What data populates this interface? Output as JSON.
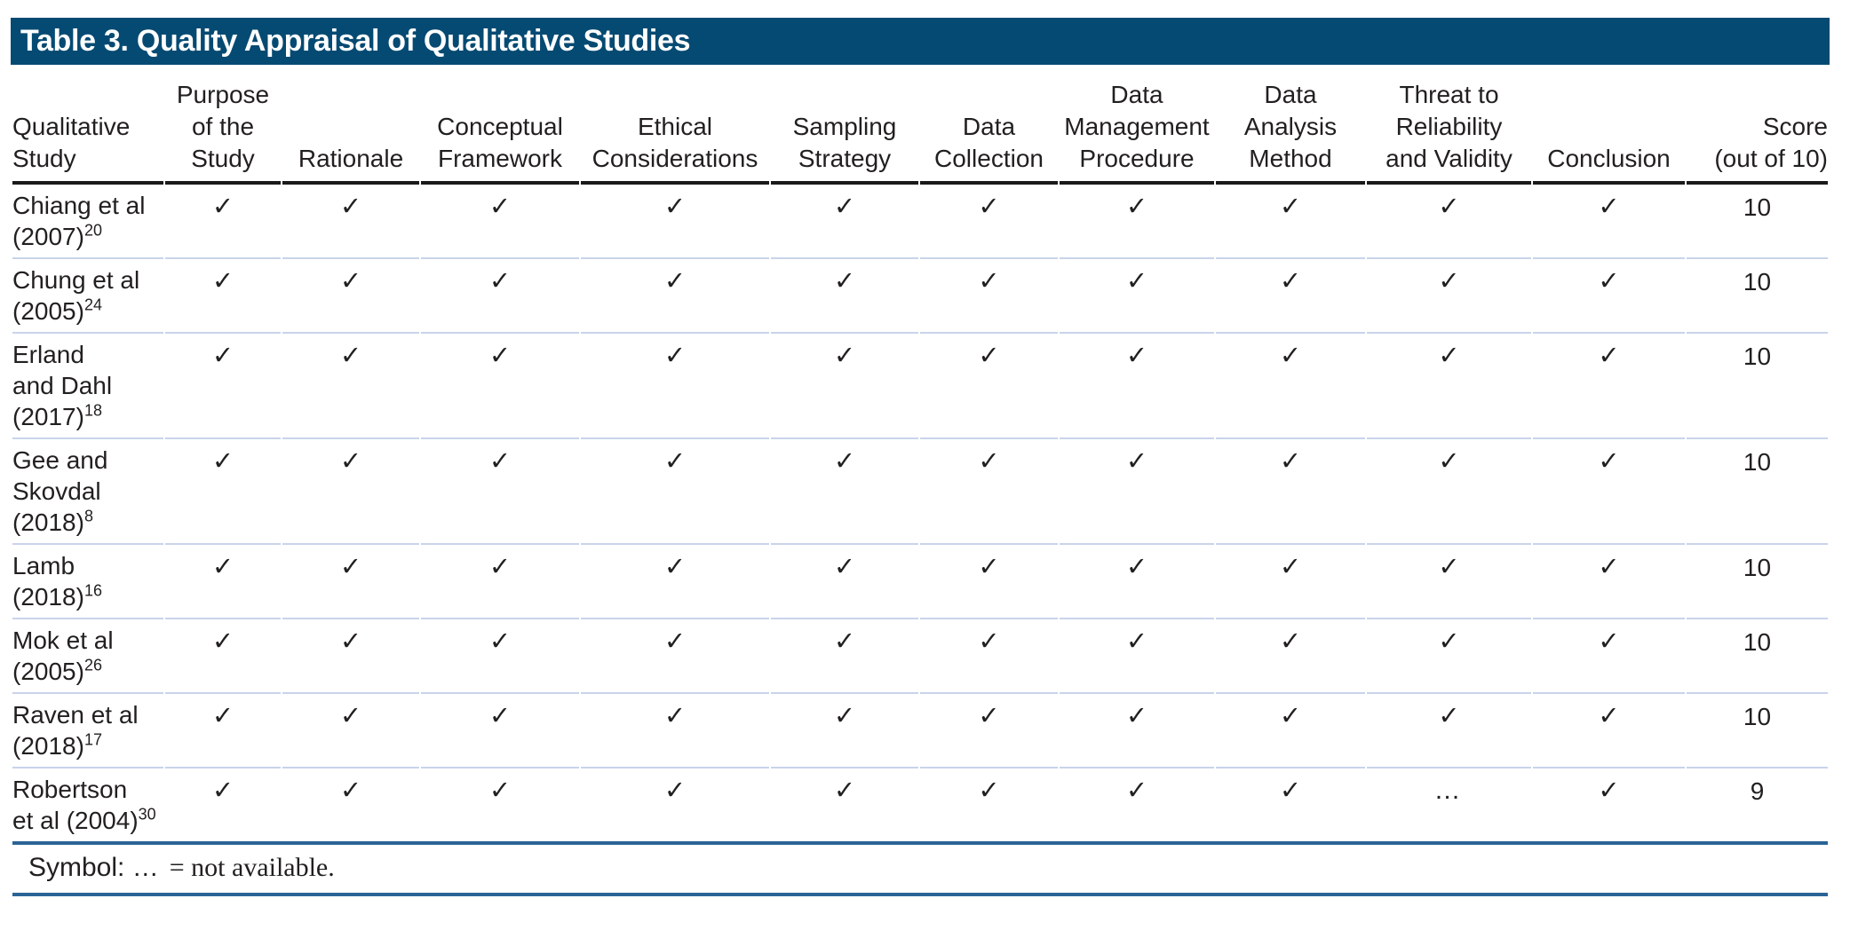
{
  "colors": {
    "title_bar_bg": "#054a72",
    "title_text": "#ffffff",
    "header_rule": "#1a1a1a",
    "row_divider": "#c9d3ea",
    "footnote_rule": "#2a6496",
    "body_text": "#221f1f"
  },
  "table": {
    "title": "Table 3. Quality Appraisal of Qualitative Studies",
    "columns": [
      "Qualitative\nStudy",
      "Purpose\nof the\nStudy",
      "Rationale",
      "Conceptual\nFramework",
      "Ethical\nConsiderations",
      "Sampling\nStrategy",
      "Data\nCollection",
      "Data\nManagement\nProcedure",
      "Data\nAnalysis\nMethod",
      "Threat to\nReliability\nand Validity",
      "Conclusion",
      "Score\n(out of 10)"
    ],
    "symbols": {
      "check": "✓",
      "not_available": "…"
    },
    "rows": [
      {
        "study": "Chiang et al\n(2007)",
        "ref": "20",
        "values": [
          "check",
          "check",
          "check",
          "check",
          "check",
          "check",
          "check",
          "check",
          "check",
          "check"
        ],
        "score": "10"
      },
      {
        "study": "Chung et al\n(2005)",
        "ref": "24",
        "values": [
          "check",
          "check",
          "check",
          "check",
          "check",
          "check",
          "check",
          "check",
          "check",
          "check"
        ],
        "score": "10"
      },
      {
        "study": "Erland\nand Dahl\n(2017)",
        "ref": "18",
        "values": [
          "check",
          "check",
          "check",
          "check",
          "check",
          "check",
          "check",
          "check",
          "check",
          "check"
        ],
        "score": "10"
      },
      {
        "study": "Gee and\nSkovdal\n(2018)",
        "ref": "8",
        "values": [
          "check",
          "check",
          "check",
          "check",
          "check",
          "check",
          "check",
          "check",
          "check",
          "check"
        ],
        "score": "10"
      },
      {
        "study": "Lamb\n(2018)",
        "ref": "16",
        "values": [
          "check",
          "check",
          "check",
          "check",
          "check",
          "check",
          "check",
          "check",
          "check",
          "check"
        ],
        "score": "10"
      },
      {
        "study": "Mok et al\n(2005)",
        "ref": "26",
        "values": [
          "check",
          "check",
          "check",
          "check",
          "check",
          "check",
          "check",
          "check",
          "check",
          "check"
        ],
        "score": "10"
      },
      {
        "study": "Raven et al\n(2018)",
        "ref": "17",
        "values": [
          "check",
          "check",
          "check",
          "check",
          "check",
          "check",
          "check",
          "check",
          "check",
          "check"
        ],
        "score": "10"
      },
      {
        "study": "Robertson\net al (2004)",
        "ref": "30",
        "values": [
          "check",
          "check",
          "check",
          "check",
          "check",
          "check",
          "check",
          "check",
          "na",
          "check"
        ],
        "score": "9"
      }
    ],
    "footnote": {
      "sans_part": "Symbol: …",
      "serif_part": "= not available."
    }
  }
}
